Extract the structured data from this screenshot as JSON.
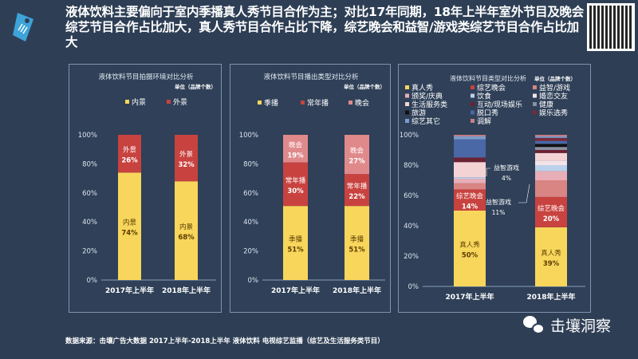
{
  "header": {
    "title": "液体饮料主要偏向于室内季播真人秀节目合作为主；对比17年同期，18年上半年室外节目及晚会综艺节目合作占比加大，真人秀节目合作占比下降，综艺晚会和益智/游戏类综艺节目合作占比加大"
  },
  "footer": {
    "source": "数据来源：击壤广告大数据 2017上半年-2018上半年 液体饮料  电视综艺监播（综艺及生活服务类节目）",
    "brand": "击壤洞察"
  },
  "chart_data": [
    {
      "type": "bar",
      "stacked": true,
      "title": "液体饮料节目拍摄环境对比分析",
      "unit": "单位（品牌个数）",
      "categories": [
        "2017年上半年",
        "2018年上半年"
      ],
      "ylim": [
        0,
        100
      ],
      "yticks": [
        "0%",
        "20%",
        "40%",
        "60%",
        "80%",
        "100%"
      ],
      "legend": "top",
      "labeled_series": [
        "内景",
        "外景"
      ],
      "series": [
        {
          "name": "内景",
          "values": [
            74,
            68
          ],
          "color": "#f8d65c"
        },
        {
          "name": "外景",
          "values": [
            26,
            32
          ],
          "color": "#c8423f"
        }
      ]
    },
    {
      "type": "bar",
      "stacked": true,
      "title": "液体饮料节目播出类型对比分析",
      "unit": "单位（品牌个数）",
      "categories": [
        "2017年上半年",
        "2018年上半年"
      ],
      "ylim": [
        0,
        100
      ],
      "yticks": [
        "0%",
        "20%",
        "40%",
        "60%",
        "80%",
        "100%"
      ],
      "legend": "top",
      "labeled_series": [
        "季播",
        "常年播",
        "晚会"
      ],
      "series": [
        {
          "name": "季播",
          "values": [
            51,
            51
          ],
          "color": "#f8d65c"
        },
        {
          "name": "常年播",
          "values": [
            30,
            22
          ],
          "color": "#c8423f"
        },
        {
          "name": "晚会",
          "values": [
            19,
            27
          ],
          "color": "#e0898b"
        }
      ]
    },
    {
      "type": "bar",
      "stacked": true,
      "title": "液体饮料节目类型对比分析",
      "unit": "单位（品牌个数）",
      "categories": [
        "2017年上半年",
        "2018年上半年"
      ],
      "ylim": [
        0,
        100
      ],
      "yticks": [
        "0%",
        "20%",
        "40%",
        "60%",
        "80%",
        "100%"
      ],
      "legend": "top",
      "labeled_series": [
        "真人秀",
        "综艺晚会"
      ],
      "callouts": [
        {
          "label": "益智游戏",
          "value": "4%",
          "category": 0
        },
        {
          "label": "益智游戏",
          "value": "11%",
          "category": 1
        }
      ],
      "series": [
        {
          "name": "真人秀",
          "values": [
            50,
            39
          ],
          "color": "#f8d65c"
        },
        {
          "name": "综艺晚会",
          "values": [
            14,
            20
          ],
          "color": "#c8423f"
        },
        {
          "name": "益智/游戏",
          "values": [
            4,
            11
          ],
          "color": "#d98583"
        },
        {
          "name": "颁奖/庆典",
          "values": [
            3,
            6
          ],
          "color": "#e8aeb8"
        },
        {
          "name": "饮食",
          "values": [
            1,
            4
          ],
          "color": "#bcd0ea"
        },
        {
          "name": "婚恋交友",
          "values": [
            0,
            3
          ],
          "color": "#f3e4ea"
        },
        {
          "name": "生活服务类",
          "values": [
            10,
            5
          ],
          "color": "#f4d3d5"
        },
        {
          "name": "互动/现场娱乐",
          "values": [
            3,
            2
          ],
          "color": "#6b2232"
        },
        {
          "name": "健康",
          "values": [
            0,
            2
          ],
          "color": "#8b90a2"
        },
        {
          "name": "旅游",
          "values": [
            0,
            2
          ],
          "color": "#111111"
        },
        {
          "name": "脱口秀",
          "values": [
            12,
            2
          ],
          "color": "#4a67a6"
        },
        {
          "name": "娱乐选秀",
          "values": [
            0,
            2
          ],
          "color": "#7a2a3a"
        },
        {
          "name": "综艺其它",
          "values": [
            2,
            1
          ],
          "color": "#7c9ccc"
        },
        {
          "name": "调解",
          "values": [
            1,
            1
          ],
          "color": "#c77f86"
        }
      ]
    }
  ]
}
